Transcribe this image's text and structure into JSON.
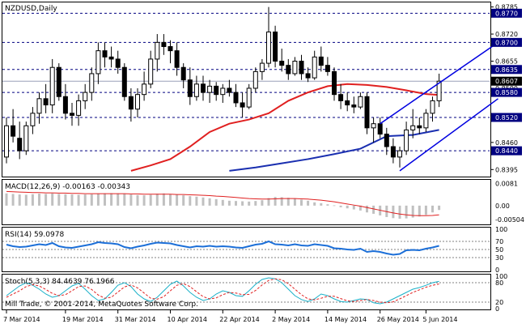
{
  "colors": {
    "background": "#ffffff",
    "frame": "#000000",
    "bull_candle": "#ffffff",
    "bear_candle": "#000000",
    "level_line": "#000080",
    "channel_line": "#0000e0",
    "ma_fast": "#e02020",
    "ma_slow": "#1a2fb0",
    "macd_hist": "#c0c0c0",
    "macd_signal": "#e02020",
    "rsi_line": "#1c6fd8",
    "stoch_main": "#1ab0c8",
    "stoch_signal": "#e02020",
    "label_bg": "#000080",
    "current_label_bg": "#000000"
  },
  "chart_data": [
    {
      "type": "candlestick",
      "title": "NZDUSD,Daily",
      "price_ticks": [
        "0.8785",
        "0.8720",
        "0.8655",
        "0.8590",
        "0.8525",
        "0.8460",
        "0.8395"
      ],
      "ylim": [
        0.8382,
        0.8792
      ],
      "level_lines": [
        {
          "label": "0.8770",
          "value": 0.877
        },
        {
          "label": "0.8700",
          "value": 0.87
        },
        {
          "label": "0.8635",
          "value": 0.8635
        },
        {
          "label": "0.8580",
          "value": 0.858
        },
        {
          "label": "0.8520",
          "value": 0.852
        },
        {
          "label": "0.8440",
          "value": 0.844
        }
      ],
      "current_price": {
        "label": "0.8607",
        "value": 0.8607
      },
      "candles": [
        {
          "o": 0.8425,
          "h": 0.852,
          "l": 0.841,
          "c": 0.85
        },
        {
          "o": 0.85,
          "h": 0.854,
          "l": 0.846,
          "c": 0.8475
        },
        {
          "o": 0.847,
          "h": 0.851,
          "l": 0.842,
          "c": 0.844
        },
        {
          "o": 0.844,
          "h": 0.851,
          "l": 0.843,
          "c": 0.85
        },
        {
          "o": 0.85,
          "h": 0.8545,
          "l": 0.848,
          "c": 0.853
        },
        {
          "o": 0.853,
          "h": 0.858,
          "l": 0.8505,
          "c": 0.8565
        },
        {
          "o": 0.8565,
          "h": 0.86,
          "l": 0.853,
          "c": 0.855
        },
        {
          "o": 0.855,
          "h": 0.866,
          "l": 0.853,
          "c": 0.864
        },
        {
          "o": 0.864,
          "h": 0.865,
          "l": 0.856,
          "c": 0.857
        },
        {
          "o": 0.857,
          "h": 0.86,
          "l": 0.8515,
          "c": 0.853
        },
        {
          "o": 0.853,
          "h": 0.8555,
          "l": 0.85,
          "c": 0.8525
        },
        {
          "o": 0.8525,
          "h": 0.8575,
          "l": 0.85,
          "c": 0.856
        },
        {
          "o": 0.856,
          "h": 0.86,
          "l": 0.854,
          "c": 0.858
        },
        {
          "o": 0.858,
          "h": 0.864,
          "l": 0.856,
          "c": 0.8625
        },
        {
          "o": 0.8625,
          "h": 0.87,
          "l": 0.86,
          "c": 0.868
        },
        {
          "o": 0.868,
          "h": 0.87,
          "l": 0.864,
          "c": 0.8665
        },
        {
          "o": 0.8665,
          "h": 0.869,
          "l": 0.864,
          "c": 0.866
        },
        {
          "o": 0.866,
          "h": 0.868,
          "l": 0.8625,
          "c": 0.864
        },
        {
          "o": 0.864,
          "h": 0.865,
          "l": 0.856,
          "c": 0.857
        },
        {
          "o": 0.857,
          "h": 0.859,
          "l": 0.851,
          "c": 0.854
        },
        {
          "o": 0.854,
          "h": 0.859,
          "l": 0.852,
          "c": 0.8575
        },
        {
          "o": 0.8575,
          "h": 0.863,
          "l": 0.856,
          "c": 0.86
        },
        {
          "o": 0.86,
          "h": 0.868,
          "l": 0.859,
          "c": 0.866
        },
        {
          "o": 0.866,
          "h": 0.872,
          "l": 0.863,
          "c": 0.87
        },
        {
          "o": 0.87,
          "h": 0.872,
          "l": 0.867,
          "c": 0.869
        },
        {
          "o": 0.869,
          "h": 0.8705,
          "l": 0.865,
          "c": 0.868
        },
        {
          "o": 0.868,
          "h": 0.87,
          "l": 0.862,
          "c": 0.864
        },
        {
          "o": 0.864,
          "h": 0.865,
          "l": 0.859,
          "c": 0.861
        },
        {
          "o": 0.861,
          "h": 0.864,
          "l": 0.855,
          "c": 0.857
        },
        {
          "o": 0.857,
          "h": 0.862,
          "l": 0.856,
          "c": 0.86
        },
        {
          "o": 0.86,
          "h": 0.862,
          "l": 0.856,
          "c": 0.858
        },
        {
          "o": 0.858,
          "h": 0.861,
          "l": 0.8555,
          "c": 0.8595
        },
        {
          "o": 0.8595,
          "h": 0.8605,
          "l": 0.856,
          "c": 0.8575
        },
        {
          "o": 0.8575,
          "h": 0.86,
          "l": 0.8555,
          "c": 0.859
        },
        {
          "o": 0.859,
          "h": 0.861,
          "l": 0.857,
          "c": 0.858
        },
        {
          "o": 0.858,
          "h": 0.86,
          "l": 0.8545,
          "c": 0.8555
        },
        {
          "o": 0.8555,
          "h": 0.858,
          "l": 0.852,
          "c": 0.8545
        },
        {
          "o": 0.8545,
          "h": 0.86,
          "l": 0.854,
          "c": 0.859
        },
        {
          "o": 0.859,
          "h": 0.864,
          "l": 0.858,
          "c": 0.863
        },
        {
          "o": 0.863,
          "h": 0.866,
          "l": 0.861,
          "c": 0.865
        },
        {
          "o": 0.865,
          "h": 0.8785,
          "l": 0.864,
          "c": 0.8725
        },
        {
          "o": 0.8725,
          "h": 0.874,
          "l": 0.864,
          "c": 0.8655
        },
        {
          "o": 0.8655,
          "h": 0.8685,
          "l": 0.863,
          "c": 0.8645
        },
        {
          "o": 0.8645,
          "h": 0.866,
          "l": 0.861,
          "c": 0.8625
        },
        {
          "o": 0.8625,
          "h": 0.8665,
          "l": 0.862,
          "c": 0.8655
        },
        {
          "o": 0.8655,
          "h": 0.867,
          "l": 0.861,
          "c": 0.8625
        },
        {
          "o": 0.8625,
          "h": 0.864,
          "l": 0.8605,
          "c": 0.8615
        },
        {
          "o": 0.8615,
          "h": 0.868,
          "l": 0.861,
          "c": 0.8665
        },
        {
          "o": 0.8665,
          "h": 0.869,
          "l": 0.863,
          "c": 0.8645
        },
        {
          "o": 0.8645,
          "h": 0.8665,
          "l": 0.862,
          "c": 0.863
        },
        {
          "o": 0.863,
          "h": 0.864,
          "l": 0.856,
          "c": 0.8575
        },
        {
          "o": 0.8575,
          "h": 0.86,
          "l": 0.854,
          "c": 0.856
        },
        {
          "o": 0.856,
          "h": 0.858,
          "l": 0.8535,
          "c": 0.855
        },
        {
          "o": 0.855,
          "h": 0.857,
          "l": 0.853,
          "c": 0.8545
        },
        {
          "o": 0.8545,
          "h": 0.858,
          "l": 0.854,
          "c": 0.857
        },
        {
          "o": 0.857,
          "h": 0.858,
          "l": 0.848,
          "c": 0.8495
        },
        {
          "o": 0.8495,
          "h": 0.852,
          "l": 0.846,
          "c": 0.8505
        },
        {
          "o": 0.8505,
          "h": 0.852,
          "l": 0.847,
          "c": 0.848
        },
        {
          "o": 0.848,
          "h": 0.8495,
          "l": 0.843,
          "c": 0.845
        },
        {
          "o": 0.845,
          "h": 0.847,
          "l": 0.841,
          "c": 0.8425
        },
        {
          "o": 0.8425,
          "h": 0.845,
          "l": 0.84,
          "c": 0.844
        },
        {
          "o": 0.844,
          "h": 0.851,
          "l": 0.843,
          "c": 0.849
        },
        {
          "o": 0.849,
          "h": 0.854,
          "l": 0.847,
          "c": 0.85
        },
        {
          "o": 0.85,
          "h": 0.852,
          "l": 0.848,
          "c": 0.8495
        },
        {
          "o": 0.8495,
          "h": 0.854,
          "l": 0.8485,
          "c": 0.853
        },
        {
          "o": 0.853,
          "h": 0.857,
          "l": 0.851,
          "c": 0.856
        },
        {
          "o": 0.856,
          "h": 0.8625,
          "l": 0.8545,
          "c": 0.8607
        }
      ],
      "ma_fast": [
        {
          "i": 19,
          "v": 0.8392
        },
        {
          "i": 22,
          "v": 0.8405
        },
        {
          "i": 25,
          "v": 0.842
        },
        {
          "i": 28,
          "v": 0.845
        },
        {
          "i": 31,
          "v": 0.8485
        },
        {
          "i": 34,
          "v": 0.8505
        },
        {
          "i": 37,
          "v": 0.8515
        },
        {
          "i": 40,
          "v": 0.853
        },
        {
          "i": 43,
          "v": 0.856
        },
        {
          "i": 46,
          "v": 0.858
        },
        {
          "i": 49,
          "v": 0.8595
        },
        {
          "i": 52,
          "v": 0.86
        },
        {
          "i": 55,
          "v": 0.8598
        },
        {
          "i": 58,
          "v": 0.8593
        },
        {
          "i": 61,
          "v": 0.8585
        },
        {
          "i": 64,
          "v": 0.8576
        },
        {
          "i": 66,
          "v": 0.8574
        }
      ],
      "ma_slow": [
        {
          "i": 34,
          "v": 0.8392
        },
        {
          "i": 38,
          "v": 0.84
        },
        {
          "i": 42,
          "v": 0.841
        },
        {
          "i": 46,
          "v": 0.842
        },
        {
          "i": 50,
          "v": 0.8432
        },
        {
          "i": 54,
          "v": 0.8445
        },
        {
          "i": 58,
          "v": 0.8475
        },
        {
          "i": 62,
          "v": 0.8478
        },
        {
          "i": 66,
          "v": 0.849
        }
      ],
      "channel_lines": [
        {
          "from": {
            "i": 57,
            "v": 0.8505
          },
          "to": {
            "i": 75,
            "v": 0.87
          }
        },
        {
          "from": {
            "i": 60,
            "v": 0.8392
          },
          "to": {
            "i": 75,
            "v": 0.8565
          }
        }
      ],
      "x_labels": [
        {
          "label": "7 Mar 2014",
          "i": 0
        },
        {
          "label": "19 Mar 2014",
          "i": 9
        },
        {
          "label": "31 Mar 2014",
          "i": 17
        },
        {
          "label": "10 Apr 2014",
          "i": 25
        },
        {
          "label": "22 Apr 2014",
          "i": 33
        },
        {
          "label": "2 May 2014",
          "i": 41
        },
        {
          "label": "14 May 2014",
          "i": 49
        },
        {
          "label": "26 May 2014",
          "i": 57
        },
        {
          "label": "5 Jun 2014",
          "i": 64
        }
      ]
    },
    {
      "type": "bar",
      "title": "MACD(12,26,9) -0.00163 -0.00343",
      "ticks": [
        "0.0081",
        "0.00",
        "-0.00504"
      ],
      "ylim": [
        -0.0063,
        0.0089
      ],
      "histogram": [
        0.0045,
        0.0043,
        0.0041,
        0.004,
        0.0042,
        0.0044,
        0.0043,
        0.0045,
        0.0043,
        0.0042,
        0.0041,
        0.004,
        0.0041,
        0.0042,
        0.0043,
        0.0045,
        0.0046,
        0.0045,
        0.0043,
        0.0041,
        0.0039,
        0.0038,
        0.004,
        0.0044,
        0.0045,
        0.0042,
        0.004,
        0.0038,
        0.0035,
        0.0033,
        0.003,
        0.0027,
        0.0024,
        0.0021,
        0.0018,
        0.0017,
        0.0016,
        0.0015,
        0.0017,
        0.002,
        0.0028,
        0.0032,
        0.0031,
        0.0029,
        0.0027,
        0.0022,
        0.0018,
        0.0012,
        0.0009,
        0.0005,
        0.0001,
        -0.0006,
        -0.001,
        -0.0014,
        -0.0018,
        -0.0025,
        -0.003,
        -0.0036,
        -0.0042,
        -0.0046,
        -0.0048,
        -0.0047,
        -0.0044,
        -0.004,
        -0.0034,
        -0.0025,
        -0.0016
      ],
      "signal": [
        0.0052,
        0.0051,
        0.005,
        0.0049,
        0.0048,
        0.0048,
        0.0047,
        0.0047,
        0.0046,
        0.0046,
        0.0045,
        0.0045,
        0.0044,
        0.0044,
        0.0044,
        0.0044,
        0.0044,
        0.0044,
        0.0044,
        0.0043,
        0.0043,
        0.0042,
        0.0042,
        0.0042,
        0.0042,
        0.0042,
        0.0041,
        0.0041,
        0.004,
        0.0039,
        0.0038,
        0.0037,
        0.0035,
        0.0034,
        0.0032,
        0.003,
        0.0028,
        0.0026,
        0.0025,
        0.0024,
        0.0024,
        0.0025,
        0.0026,
        0.0026,
        0.0026,
        0.0025,
        0.0024,
        0.0022,
        0.002,
        0.0017,
        0.0014,
        0.001,
        0.0006,
        0.0002,
        -0.0002,
        -0.0007,
        -0.0012,
        -0.0017,
        -0.0022,
        -0.0027,
        -0.0031,
        -0.0034,
        -0.0036,
        -0.0037,
        -0.0037,
        -0.0036,
        -0.0034
      ]
    },
    {
      "type": "line",
      "title": "RSI(14) 59.0978",
      "ticks": [
        "100",
        "70",
        "50",
        "30",
        "0"
      ],
      "ylim": [
        0,
        100
      ],
      "levels": [
        70,
        50,
        30
      ],
      "values": [
        62,
        58,
        56,
        57,
        60,
        63,
        61,
        66,
        58,
        55,
        54,
        57,
        60,
        63,
        68,
        66,
        65,
        63,
        56,
        53,
        57,
        60,
        64,
        67,
        66,
        65,
        61,
        58,
        55,
        58,
        57,
        59,
        57,
        58,
        57,
        55,
        54,
        58,
        62,
        64,
        70,
        63,
        62,
        60,
        63,
        60,
        59,
        63,
        61,
        59,
        53,
        52,
        50,
        49,
        52,
        44,
        46,
        44,
        40,
        37,
        39,
        48,
        49,
        48,
        52,
        55,
        59
      ]
    },
    {
      "type": "line",
      "title": "Stoch(5,3,3) 84.4639 76.1966",
      "ticks": [
        "100",
        "80",
        "20",
        "0"
      ],
      "ylim": [
        0,
        100
      ],
      "levels": [
        80,
        20
      ],
      "main": [
        40,
        55,
        70,
        80,
        72,
        60,
        45,
        35,
        40,
        55,
        70,
        78,
        60,
        40,
        25,
        30,
        50,
        72,
        80,
        68,
        45,
        30,
        22,
        35,
        55,
        75,
        85,
        70,
        50,
        35,
        25,
        30,
        45,
        55,
        50,
        40,
        38,
        55,
        75,
        90,
        95,
        92,
        80,
        60,
        40,
        28,
        22,
        30,
        45,
        40,
        30,
        22,
        20,
        25,
        30,
        28,
        18,
        15,
        20,
        30,
        40,
        50,
        60,
        65,
        72,
        80,
        84
      ],
      "signal": [
        35,
        45,
        55,
        68,
        74,
        70,
        59,
        47,
        40,
        43,
        55,
        68,
        70,
        59,
        42,
        32,
        35,
        51,
        67,
        73,
        64,
        48,
        32,
        29,
        37,
        55,
        72,
        77,
        68,
        52,
        37,
        30,
        33,
        43,
        50,
        48,
        43,
        44,
        56,
        73,
        87,
        92,
        89,
        77,
        60,
        43,
        30,
        27,
        32,
        38,
        38,
        31,
        24,
        22,
        25,
        28,
        25,
        20,
        18,
        21,
        30,
        40,
        50,
        58,
        66,
        72,
        76
      ]
    }
  ],
  "copyright": "Mill Trade, © 2001-2014, MetaQuotes Software Corp."
}
